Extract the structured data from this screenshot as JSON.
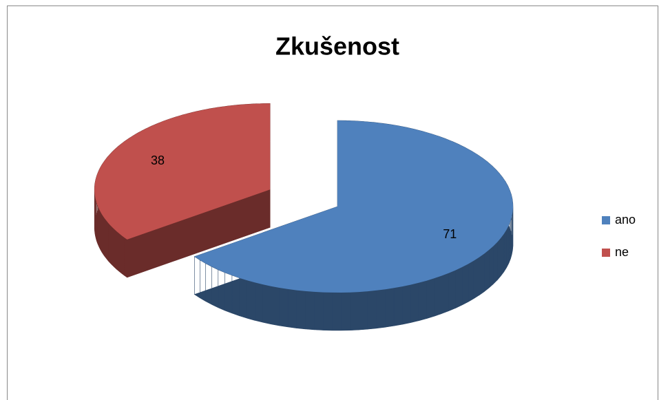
{
  "chart_data": {
    "type": "pie",
    "title": "Zkušenost",
    "categories": [
      "ano",
      "ne"
    ],
    "values": [
      71,
      38
    ],
    "colors": [
      "#4f81bd",
      "#c0504d"
    ],
    "exploded": [
      false,
      true
    ],
    "legend": "right"
  }
}
